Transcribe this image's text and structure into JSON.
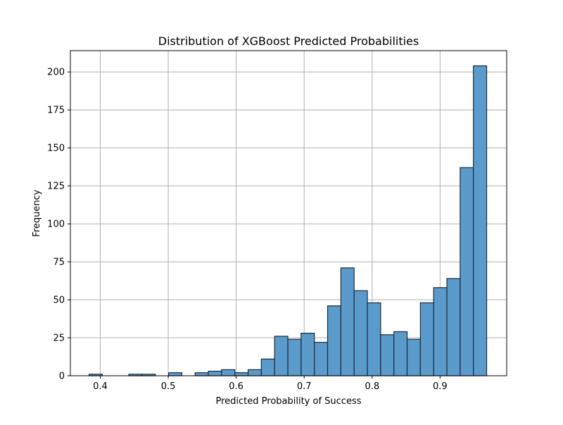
{
  "chart_data": {
    "type": "bar",
    "title": "Distribution of XGBoost Predicted Probabilities",
    "xlabel": "Predicted Probability of Success",
    "ylabel": "Frequency",
    "xlim": [
      0.356,
      0.998
    ],
    "ylim": [
      0,
      214
    ],
    "xticks": [
      0.4,
      0.5,
      0.6,
      0.7,
      0.8,
      0.9
    ],
    "yticks": [
      0,
      25,
      50,
      75,
      100,
      125,
      150,
      175,
      200
    ],
    "grid": true,
    "bin_start": 0.3835,
    "bin_width": 0.0195,
    "values": [
      1,
      0,
      0,
      1,
      1,
      0,
      2,
      0,
      2,
      3,
      4,
      2,
      4,
      11,
      26,
      24,
      28,
      22,
      46,
      71,
      56,
      48,
      27,
      29,
      24,
      48,
      58,
      64,
      137,
      204
    ],
    "bar_color": "#5b9bcc",
    "edge_color": "#1a2a38"
  }
}
